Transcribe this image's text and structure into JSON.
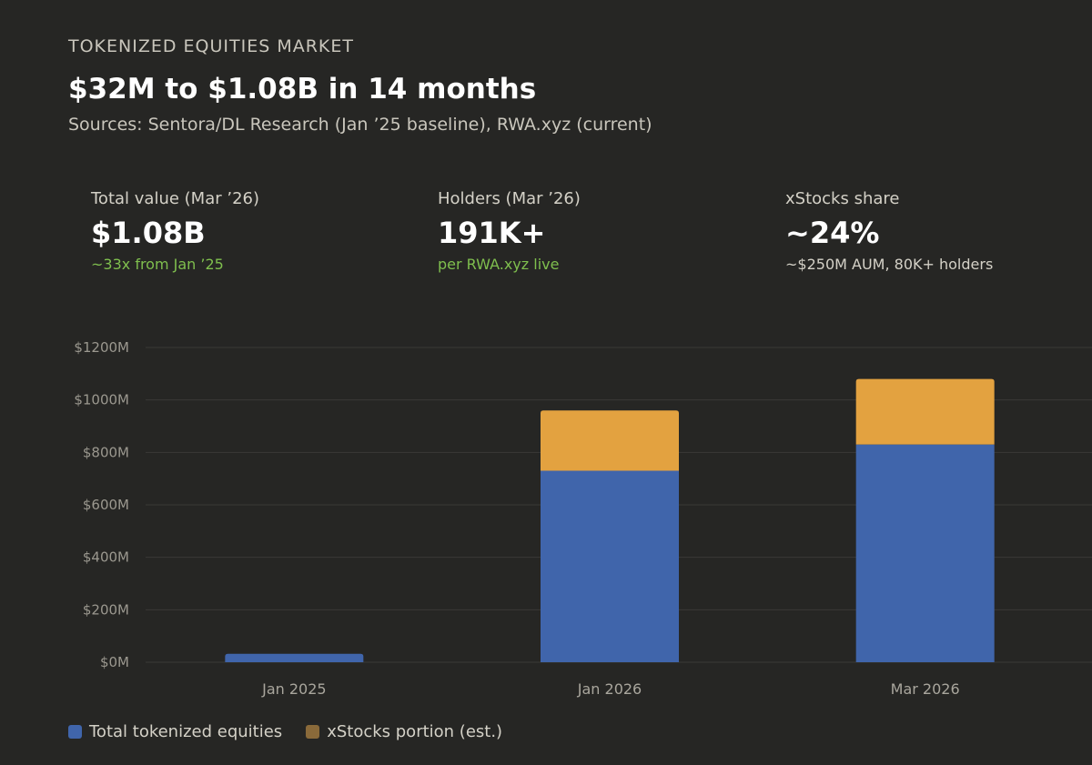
{
  "header": {
    "eyebrow": "TOKENIZED EQUITIES MARKET",
    "headline": "$32M to $1.08B in 14 months",
    "sources": "Sources: Sentora/DL Research (Jan ’25 baseline), RWA.xyz (current)"
  },
  "stats": [
    {
      "label": "Total value (Mar ’26)",
      "value": "$1.08B",
      "sub": "~33x from Jan ’25"
    },
    {
      "label": "Holders (Mar ’26)",
      "value": "191K+",
      "sub": "per RWA.xyz live"
    },
    {
      "label": "xStocks share",
      "value": "~24%",
      "sub": "~$250M AUM, 80K+ holders"
    }
  ],
  "colors": {
    "total": "#4065ab",
    "xstocks": "#e3a240",
    "legend_xstocks": "#8a6a3a",
    "grid": "#3a3936",
    "positive": "#7fbf4e"
  },
  "chart_data": {
    "type": "bar",
    "stacked": true,
    "categories": [
      "Jan 2025",
      "Jan 2026",
      "Mar 2026"
    ],
    "series": [
      {
        "name": "Total tokenized equities",
        "values": [
          32,
          730,
          830
        ]
      },
      {
        "name": "xStocks portion (est.)",
        "values": [
          0,
          230,
          250
        ]
      }
    ],
    "ylim": [
      0,
      1200
    ],
    "yticks": [
      0,
      200,
      400,
      600,
      800,
      1000,
      1200
    ],
    "ytick_labels": [
      "$0M",
      "$200M",
      "$400M",
      "$600M",
      "$800M",
      "$1000M",
      "$1200M"
    ],
    "grid": true,
    "legend_position": "bottom-left"
  },
  "legend": {
    "total_label": "Total tokenized equities",
    "xstocks_label": "xStocks portion (est.)"
  }
}
